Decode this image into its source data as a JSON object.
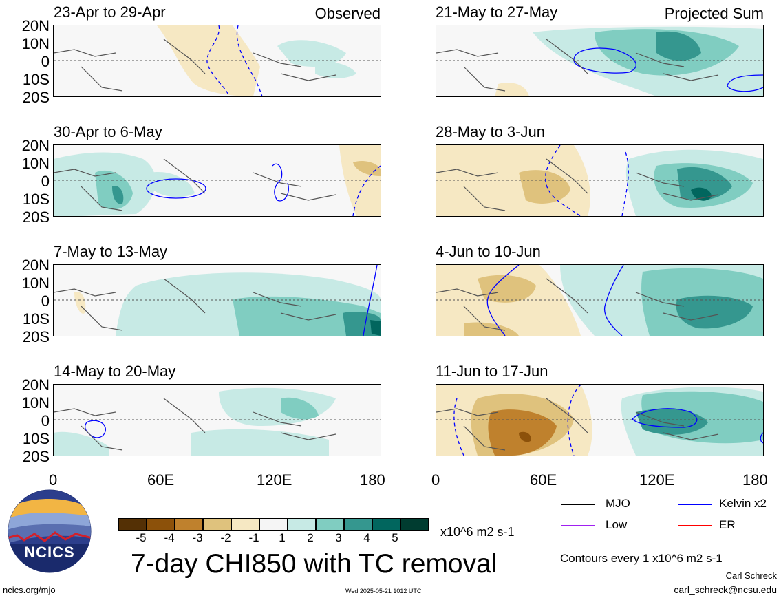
{
  "panels": [
    {
      "title": "23-Apr to 29-Apr",
      "tag": "Observed"
    },
    {
      "title": "30-Apr to 6-May",
      "tag": ""
    },
    {
      "title": "7-May to 13-May",
      "tag": ""
    },
    {
      "title": "14-May to 20-May",
      "tag": ""
    },
    {
      "title": "21-May to 27-May",
      "tag": "Projected Sum"
    },
    {
      "title": "28-May to 3-Jun",
      "tag": ""
    },
    {
      "title": "4-Jun to 10-Jun",
      "tag": ""
    },
    {
      "title": "11-Jun to 17-Jun",
      "tag": ""
    }
  ],
  "lat_labels": [
    "20N",
    "10N",
    "0",
    "10S",
    "20S"
  ],
  "lon_labels": [
    "0",
    "60E",
    "120E",
    "180"
  ],
  "colorbar": {
    "colors": [
      "#543005",
      "#8c510a",
      "#bf812d",
      "#dfc27d",
      "#f6e8c3",
      "#f5f5f5",
      "#c7eae5",
      "#80cdc1",
      "#35978f",
      "#01665e",
      "#003c30"
    ],
    "labels": [
      "-5",
      "-4",
      "-3",
      "-2",
      "-1",
      "1",
      "2",
      "3",
      "4",
      "5"
    ],
    "units": "x10^6 m2 s-1"
  },
  "main_title": "7-day CHI850 with TC removal",
  "legend": {
    "items": [
      {
        "label": "MJO",
        "color": "#000000"
      },
      {
        "label": "Kelvin x2",
        "color": "#0000ff"
      },
      {
        "label": "Low",
        "color": "#a020f0"
      },
      {
        "label": "ER",
        "color": "#ff0000"
      }
    ],
    "contours_note": "Contours every 1 x10^6 m2 s-1"
  },
  "author": "Carl Schreck",
  "email": "carl_schreck@ncsu.edu",
  "site": "ncics.org/mjo",
  "timestamp": "Wed 2025-05-21 1012 UTC",
  "logo_text": "NCICS"
}
